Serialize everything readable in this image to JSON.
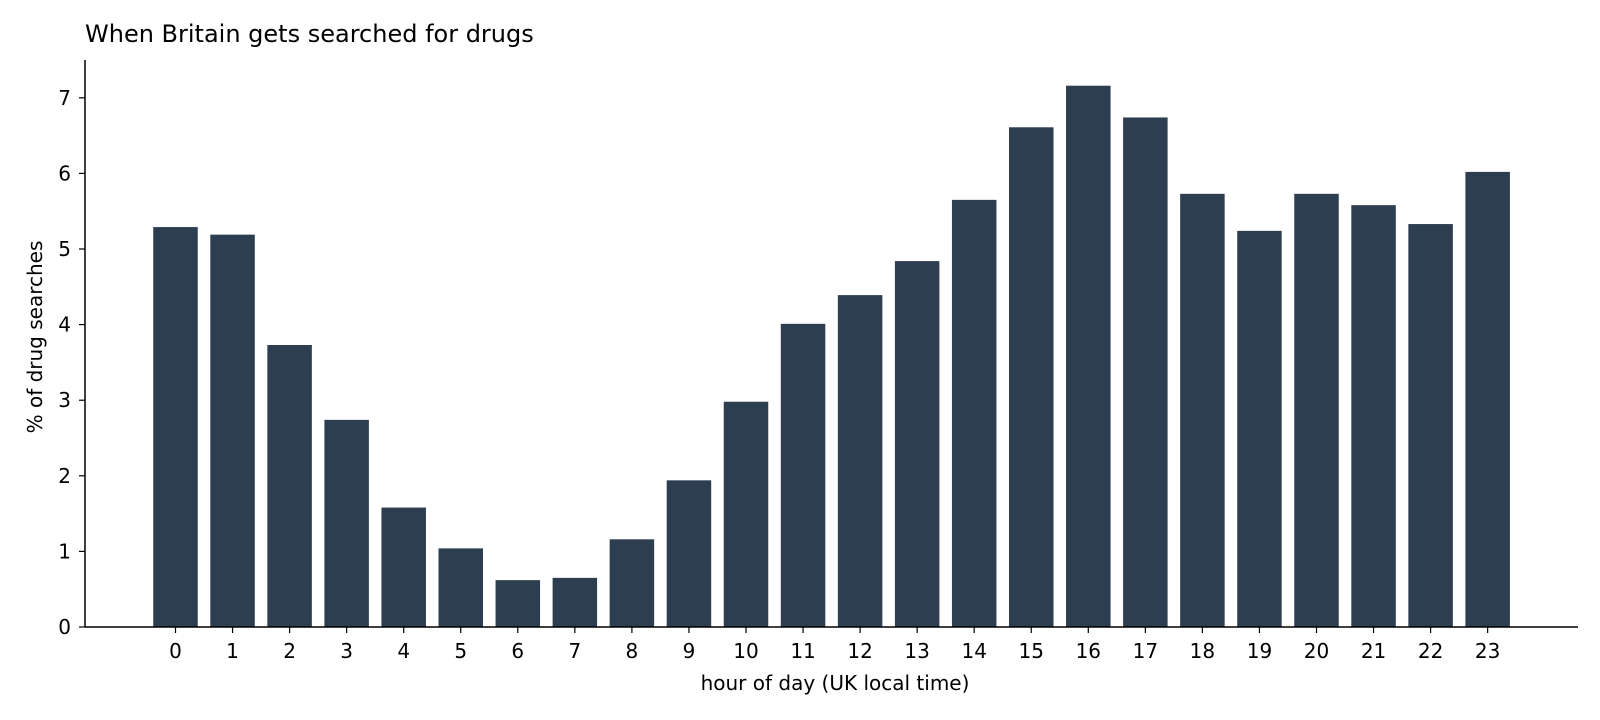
{
  "chart_data": {
    "type": "bar",
    "title": "When Britain gets searched for drugs",
    "xlabel": "hour of day (UK local time)",
    "ylabel": "% of drug searches",
    "categories": [
      "0",
      "1",
      "2",
      "3",
      "4",
      "5",
      "6",
      "7",
      "8",
      "9",
      "10",
      "11",
      "12",
      "13",
      "14",
      "15",
      "16",
      "17",
      "18",
      "19",
      "20",
      "21",
      "22",
      "23"
    ],
    "values": [
      5.29,
      5.19,
      3.73,
      2.74,
      1.58,
      1.04,
      0.62,
      0.65,
      1.16,
      1.94,
      2.98,
      4.01,
      4.39,
      4.84,
      5.65,
      6.61,
      7.16,
      6.74,
      5.73,
      5.24,
      5.73,
      5.58,
      5.33,
      6.02
    ],
    "yticks": [
      0,
      1,
      2,
      3,
      4,
      5,
      6,
      7
    ],
    "ylim": [
      0,
      7.5
    ],
    "bar_color": "#2d3e50",
    "grid": false,
    "legend": "none"
  }
}
